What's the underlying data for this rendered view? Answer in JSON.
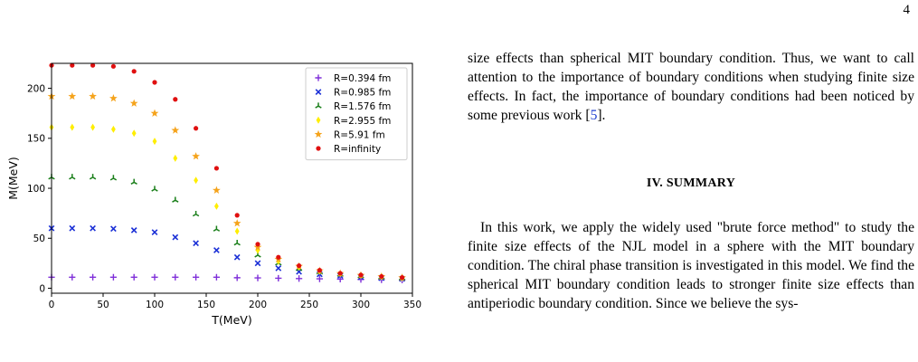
{
  "page": {
    "number": "4"
  },
  "figure": {
    "chart_data": {
      "type": "scatter",
      "xlabel": "T(MeV)",
      "ylabel": "M(MeV)",
      "xlim": [
        0,
        350
      ],
      "ylim": [
        -5,
        225
      ],
      "xticks": [
        0,
        50,
        100,
        150,
        200,
        250,
        300,
        350
      ],
      "yticks": [
        0,
        50,
        100,
        150,
        200
      ],
      "legend_position": "top-right",
      "x": [
        0,
        20,
        40,
        60,
        80,
        100,
        120,
        140,
        160,
        180,
        200,
        220,
        240,
        260,
        280,
        300,
        320,
        340
      ],
      "series": [
        {
          "name": "R=0.394 fm",
          "color": "#7f2fd9",
          "marker": "plus",
          "values": [
            11,
            11,
            11,
            11,
            11,
            11,
            11,
            11,
            11,
            10.5,
            10.3,
            10,
            9.7,
            9.4,
            9.1,
            8.8,
            8.5,
            8.2
          ]
        },
        {
          "name": "R=0.985 fm",
          "color": "#1a2fd6",
          "marker": "x",
          "values": [
            60,
            60,
            60,
            59.5,
            58,
            56,
            51,
            45,
            38,
            31,
            25,
            20,
            16.5,
            14,
            12.5,
            11.2,
            10.2,
            9.4
          ]
        },
        {
          "name": "R=1.576 fm",
          "color": "#1a7f1a",
          "marker": "tri",
          "values": [
            111,
            111,
            111,
            110,
            106,
            99,
            88,
            74,
            59,
            45,
            33,
            25,
            19.5,
            16,
            13.7,
            12.2,
            11,
            10
          ]
        },
        {
          "name": "R=2.955 fm",
          "color": "#ffee00",
          "marker": "diamond",
          "values": [
            161,
            161,
            161,
            159,
            155,
            147,
            130,
            108,
            82,
            57,
            38,
            27,
            21,
            17,
            14.5,
            12.8,
            11.5,
            10.4
          ]
        },
        {
          "name": "R=5.91 fm",
          "color": "#f5a31b",
          "marker": "star",
          "values": [
            192,
            192,
            192,
            190,
            185,
            175,
            158,
            132,
            98,
            65,
            41,
            29,
            22,
            17.5,
            14.8,
            13,
            11.7,
            10.6
          ]
        },
        {
          "name": "R=infinity",
          "color": "#e01010",
          "marker": "dot",
          "values": [
            223,
            223,
            223,
            222,
            217,
            206,
            189,
            160,
            120,
            73,
            44,
            31,
            22.5,
            18,
            15,
            13.2,
            11.8,
            10.7
          ]
        }
      ]
    }
  },
  "text": {
    "para1": "size effects than spherical MIT boundary condition. Thus, we want to call attention to the importance of boundary conditions when studying finite size effects. In fact, the importance of boundary conditions had been noticed by some previous work [",
    "para1_ref": "5",
    "para1_end": "].",
    "section_heading": "IV.   SUMMARY",
    "para2": "In this work, we apply the widely used \"brute force method\" to study the finite size effects of the NJL model in a sphere with the MIT boundary condition. The chiral phase transition is investigated in this model. We find the spherical MIT boundary condition leads to stronger finite size effects than antiperiodic boundary condition. Since we believe the sys-"
  }
}
